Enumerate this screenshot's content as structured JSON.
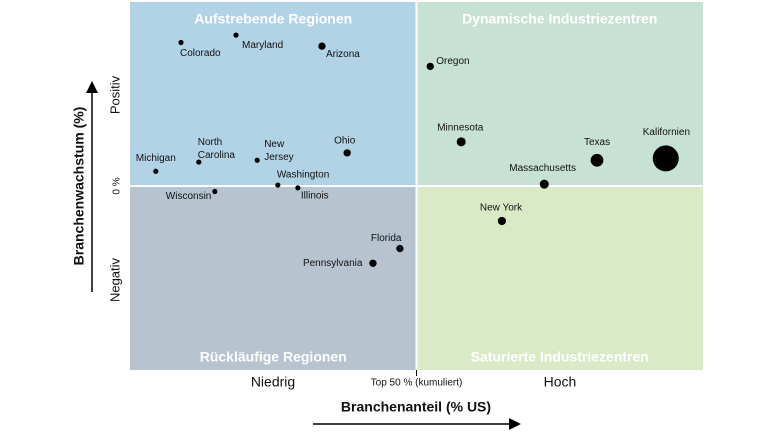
{
  "chart_data": {
    "type": "scatter",
    "quadrants": [
      {
        "label": "Aufstrebende Regionen",
        "color": "#b2d2e6"
      },
      {
        "label": "Dynamische Industriezentren",
        "color": "#c8e1d5"
      },
      {
        "label": "Rückläufige Regionen",
        "color": "#b8c3d0"
      },
      {
        "label": "Saturierte Industriezentren",
        "color": "#dbeac6"
      }
    ],
    "x_axis_label": "Branchenanteil (% US)",
    "y_axis_label": "Branchenwachstum (%)",
    "x_level_labels": [
      "Niedrig",
      "Hoch"
    ],
    "y_level_labels": [
      "Positiv",
      "Negativ"
    ],
    "xlim": [
      0,
      100
    ],
    "ylim": [
      -10,
      10
    ],
    "xticks": [
      {
        "value": 50,
        "label": "Top 50 % (kumuliert)"
      }
    ],
    "yticks": [
      {
        "value": 0,
        "label": "0 %"
      }
    ],
    "color": "#000000",
    "labels": [
      "Colorado",
      "Maryland",
      "Arizona",
      "Oregon",
      "Minnesota",
      "Texas",
      "Kalifornien",
      "Massachusetts",
      "New York",
      "Florida",
      "Pennsylvania",
      "Michigan",
      "North Carolina",
      "New Jersey",
      "Ohio",
      "Washington",
      "Illinois",
      "Wisconsin"
    ],
    "x": [
      8.9,
      18.5,
      33.5,
      52.4,
      57.8,
      81.5,
      93.5,
      72.3,
      64.9,
      47.1,
      42.4,
      4.5,
      12.0,
      22.2,
      37.9,
      25.8,
      29.3,
      14.8
    ],
    "values": [
      7.8,
      8.2,
      7.6,
      6.5,
      2.4,
      1.4,
      1.5,
      0.1,
      -1.9,
      -3.4,
      -4.2,
      0.8,
      1.3,
      1.4,
      1.8,
      0.05,
      -0.1,
      -0.3
    ],
    "sizes": [
      1,
      1,
      2,
      2,
      3,
      6,
      25,
      3,
      2.5,
      2,
      2,
      1,
      1,
      1,
      2,
      1,
      1,
      1
    ]
  }
}
